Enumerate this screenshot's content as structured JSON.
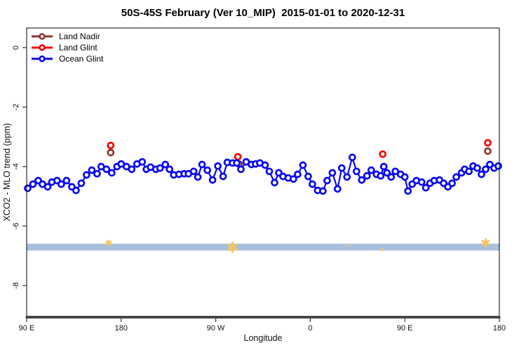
{
  "title": "50S-45S February (Ver 10_MIP)  2015-01-01 to 2020-12-31",
  "chart_data": {
    "type": "scatter",
    "title": "50S-45S February (Ver 10_MIP)  2015-01-01 to 2020-12-31",
    "xlabel": "Longitude",
    "ylabel": "XCO2 - MLO trend (ppm)",
    "grid": false,
    "x_axis": {
      "note": "longitude axis wraps around the globe; positions are degrees east of 90E along the axis",
      "range": [
        0,
        450
      ],
      "ticks": [
        0,
        90,
        180,
        270,
        360,
        450
      ],
      "tick_labels": [
        "90 E",
        "180",
        "90 W",
        "0",
        "90 E",
        "180"
      ]
    },
    "y_axis": {
      "range": [
        -9.04,
        0.66
      ],
      "ticks": [
        0,
        -2,
        -4,
        -6,
        -8
      ],
      "tick_labels": [
        "0",
        "-2",
        "-4",
        "-6",
        "-8"
      ]
    },
    "legend": {
      "position": "top-left",
      "items": [
        {
          "name": "Land Nadir",
          "color": "#8f3430"
        },
        {
          "name": "Land Glint",
          "color": "#f20400"
        },
        {
          "name": "Ocean Glint",
          "color": "#0909f0"
        }
      ]
    },
    "series": [
      {
        "name": "Land Nadir",
        "mode": "points",
        "color": "#8f3430",
        "points": [
          [
            80,
            -3.53
          ],
          [
            202,
            -3.91
          ],
          [
            439,
            -3.48
          ]
        ]
      },
      {
        "name": "Land Glint",
        "mode": "points",
        "color": "#f20400",
        "points": [
          [
            80,
            -3.29
          ],
          [
            201,
            -3.67
          ],
          [
            339,
            -3.58
          ],
          [
            439,
            -3.2
          ]
        ]
      },
      {
        "name": "Ocean Glint",
        "mode": "line+points",
        "color": "#0909f0",
        "points": [
          [
            1,
            -4.73
          ],
          [
            6,
            -4.59
          ],
          [
            11,
            -4.47
          ],
          [
            15,
            -4.59
          ],
          [
            20,
            -4.68
          ],
          [
            24,
            -4.52
          ],
          [
            29,
            -4.47
          ],
          [
            33,
            -4.59
          ],
          [
            38,
            -4.47
          ],
          [
            43,
            -4.68
          ],
          [
            47,
            -4.8
          ],
          [
            52,
            -4.56
          ],
          [
            57,
            -4.28
          ],
          [
            62,
            -4.12
          ],
          [
            67,
            -4.24
          ],
          [
            71,
            -4.0
          ],
          [
            76,
            -4.09
          ],
          [
            81,
            -4.21
          ],
          [
            86,
            -4.0
          ],
          [
            90,
            -3.91
          ],
          [
            95,
            -4.0
          ],
          [
            100,
            -4.09
          ],
          [
            105,
            -3.91
          ],
          [
            110,
            -3.84
          ],
          [
            114,
            -4.09
          ],
          [
            118,
            -4.02
          ],
          [
            123,
            -4.09
          ],
          [
            127,
            -4.05
          ],
          [
            132,
            -3.93
          ],
          [
            136,
            -4.09
          ],
          [
            140,
            -4.28
          ],
          [
            145,
            -4.26
          ],
          [
            150,
            -4.24
          ],
          [
            154,
            -4.24
          ],
          [
            159,
            -4.16
          ],
          [
            163,
            -4.35
          ],
          [
            167,
            -3.93
          ],
          [
            172,
            -4.12
          ],
          [
            177,
            -4.45
          ],
          [
            182,
            -3.98
          ],
          [
            187,
            -4.33
          ],
          [
            191,
            -3.86
          ],
          [
            196,
            -3.88
          ],
          [
            200,
            -3.88
          ],
          [
            204,
            -4.09
          ],
          [
            209,
            -3.84
          ],
          [
            214,
            -3.93
          ],
          [
            218,
            -3.91
          ],
          [
            222,
            -3.88
          ],
          [
            227,
            -3.95
          ],
          [
            231,
            -4.16
          ],
          [
            236,
            -4.54
          ],
          [
            240,
            -4.21
          ],
          [
            244,
            -4.33
          ],
          [
            249,
            -4.38
          ],
          [
            254,
            -4.42
          ],
          [
            258,
            -4.26
          ],
          [
            263,
            -3.95
          ],
          [
            268,
            -4.33
          ],
          [
            272,
            -4.59
          ],
          [
            277,
            -4.8
          ],
          [
            282,
            -4.82
          ],
          [
            286,
            -4.47
          ],
          [
            291,
            -4.21
          ],
          [
            296,
            -4.75
          ],
          [
            300,
            -4.05
          ],
          [
            305,
            -4.35
          ],
          [
            310,
            -3.69
          ],
          [
            314,
            -4.16
          ],
          [
            319,
            -4.45
          ],
          [
            324,
            -4.31
          ],
          [
            328,
            -4.12
          ],
          [
            333,
            -4.26
          ],
          [
            337,
            -4.31
          ],
          [
            340,
            -4.0
          ],
          [
            343,
            -4.21
          ],
          [
            347,
            -4.35
          ],
          [
            351,
            -4.16
          ],
          [
            356,
            -4.26
          ],
          [
            360,
            -4.35
          ],
          [
            363,
            -4.82
          ],
          [
            367,
            -4.59
          ],
          [
            371,
            -4.47
          ],
          [
            376,
            -4.52
          ],
          [
            380,
            -4.71
          ],
          [
            384,
            -4.56
          ],
          [
            388,
            -4.47
          ],
          [
            393,
            -4.45
          ],
          [
            397,
            -4.56
          ],
          [
            401,
            -4.68
          ],
          [
            405,
            -4.56
          ],
          [
            409,
            -4.35
          ],
          [
            414,
            -4.21
          ],
          [
            417,
            -4.09
          ],
          [
            421,
            -4.16
          ],
          [
            425,
            -3.98
          ],
          [
            429,
            -4.05
          ],
          [
            433,
            -4.26
          ],
          [
            437,
            -4.09
          ],
          [
            441,
            -3.93
          ],
          [
            445,
            -4.05
          ],
          [
            449,
            -3.98
          ]
        ]
      }
    ],
    "band": {
      "y_from": -6.59,
      "y_to": -6.82,
      "color": "#a9c0dd"
    },
    "band_marks": {
      "color": "#f8c55f",
      "marks": [
        {
          "x": 78,
          "y": -6.56,
          "size": 6
        },
        {
          "x": 196,
          "y": -6.71,
          "size": 13
        },
        {
          "x": 307,
          "y": -6.64,
          "size": 3
        },
        {
          "x": 339,
          "y": -6.8,
          "size": 4
        },
        {
          "x": 437,
          "y": -6.56,
          "size": 10
        }
      ]
    }
  }
}
